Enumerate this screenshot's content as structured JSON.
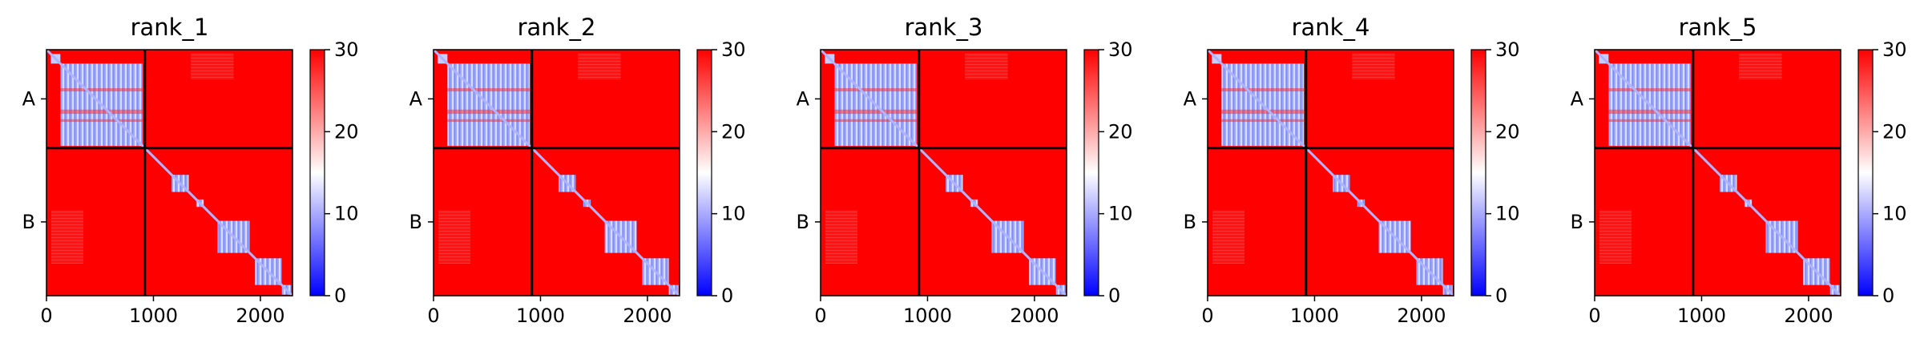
{
  "chart_data": [
    {
      "type": "heatmap",
      "title": "rank_1",
      "xticks": [
        0,
        1000,
        2000
      ],
      "xlim": [
        0,
        2300
      ],
      "ylim": [
        2300,
        0
      ],
      "boundary": 920,
      "chain_labels": [
        "A",
        "B"
      ],
      "colorbar": {
        "ticks": [
          0,
          10,
          20,
          30
        ],
        "range": [
          0,
          30
        ],
        "colors": [
          "#0000ff",
          "#ffffff",
          "#ff0000"
        ]
      },
      "cmap": "bwr"
    },
    {
      "type": "heatmap",
      "title": "rank_2",
      "xticks": [
        0,
        1000,
        2000
      ],
      "xlim": [
        0,
        2300
      ],
      "ylim": [
        2300,
        0
      ],
      "boundary": 920,
      "chain_labels": [
        "A",
        "B"
      ],
      "colorbar": {
        "ticks": [
          0,
          10,
          20,
          30
        ],
        "range": [
          0,
          30
        ],
        "colors": [
          "#0000ff",
          "#ffffff",
          "#ff0000"
        ]
      },
      "cmap": "bwr"
    },
    {
      "type": "heatmap",
      "title": "rank_3",
      "xticks": [
        0,
        1000,
        2000
      ],
      "xlim": [
        0,
        2300
      ],
      "ylim": [
        2300,
        0
      ],
      "boundary": 920,
      "chain_labels": [
        "A",
        "B"
      ],
      "colorbar": {
        "ticks": [
          0,
          10,
          20,
          30
        ],
        "range": [
          0,
          30
        ],
        "colors": [
          "#0000ff",
          "#ffffff",
          "#ff0000"
        ]
      },
      "cmap": "bwr"
    },
    {
      "type": "heatmap",
      "title": "rank_4",
      "xticks": [
        0,
        1000,
        2000
      ],
      "xlim": [
        0,
        2300
      ],
      "ylim": [
        2300,
        0
      ],
      "boundary": 920,
      "chain_labels": [
        "A",
        "B"
      ],
      "colorbar": {
        "ticks": [
          0,
          10,
          20,
          30
        ],
        "range": [
          0,
          30
        ],
        "colors": [
          "#0000ff",
          "#ffffff",
          "#ff0000"
        ]
      },
      "cmap": "bwr"
    },
    {
      "type": "heatmap",
      "title": "rank_5",
      "xticks": [
        0,
        1000,
        2000
      ],
      "xlim": [
        0,
        2300
      ],
      "ylim": [
        2300,
        0
      ],
      "boundary": 920,
      "chain_labels": [
        "A",
        "B"
      ],
      "colorbar": {
        "ticks": [
          0,
          10,
          20,
          30
        ],
        "range": [
          0,
          30
        ],
        "colors": [
          "#0000ff",
          "#ffffff",
          "#ff0000"
        ]
      },
      "cmap": "bwr"
    }
  ]
}
